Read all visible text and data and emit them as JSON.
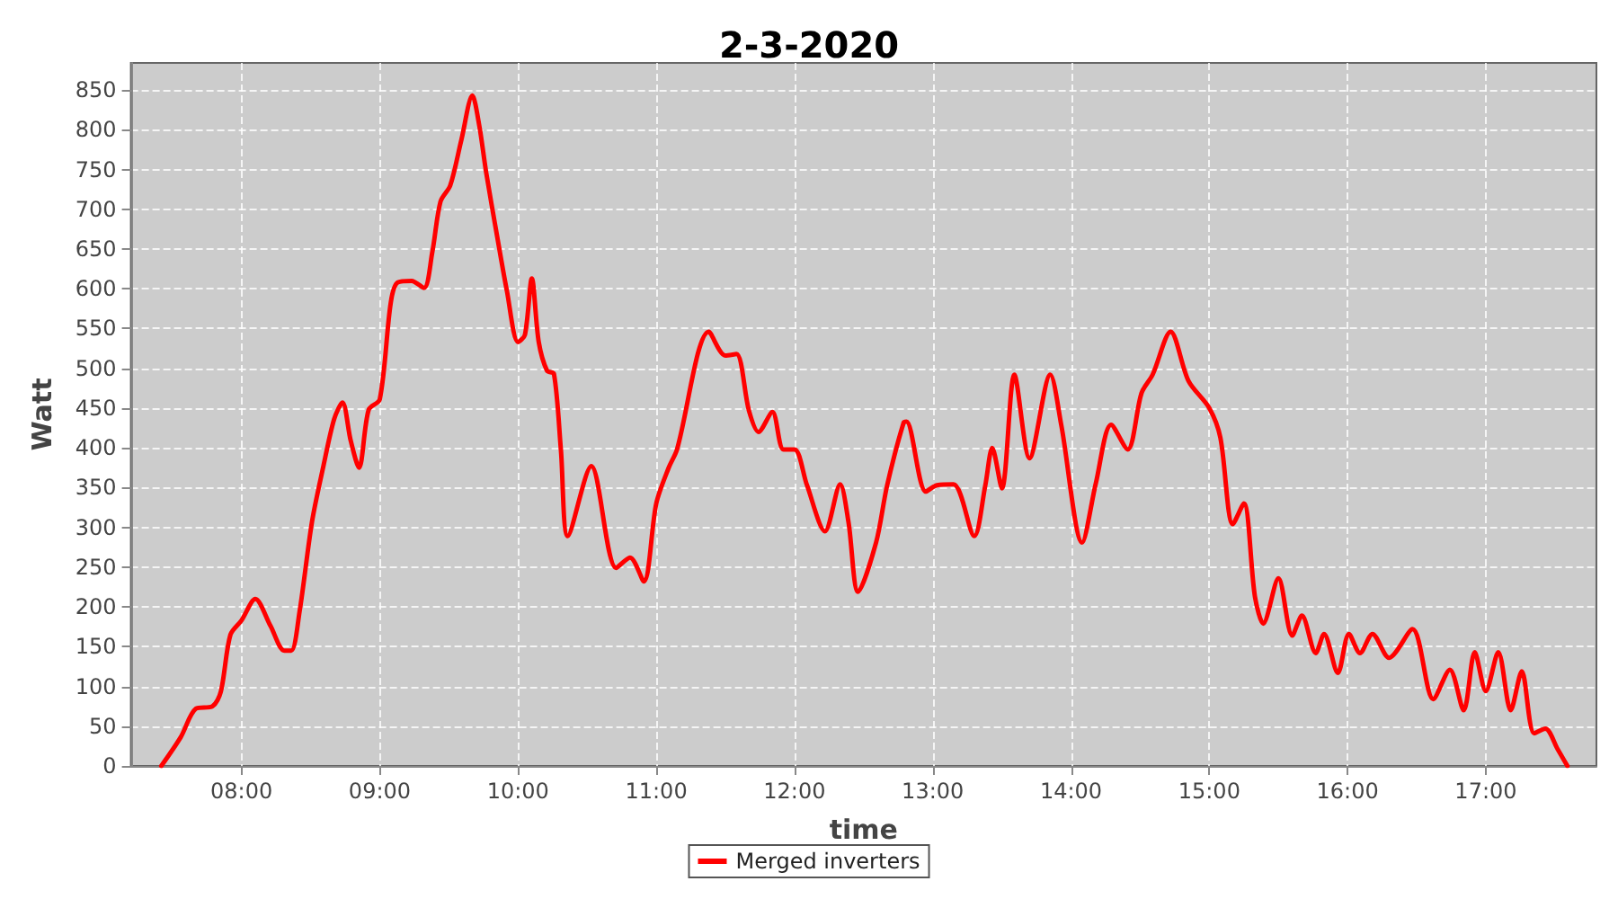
{
  "chart_data": {
    "type": "line",
    "title": "2-3-2020",
    "xlabel": "time",
    "ylabel": "Watt",
    "xlim": [
      7.2,
      17.8
    ],
    "ylim": [
      0,
      884
    ],
    "xticks": [
      {
        "value": 8,
        "label": "08:00"
      },
      {
        "value": 9,
        "label": "09:00"
      },
      {
        "value": 10,
        "label": "10:00"
      },
      {
        "value": 11,
        "label": "11:00"
      },
      {
        "value": 12,
        "label": "12:00"
      },
      {
        "value": 13,
        "label": "13:00"
      },
      {
        "value": 14,
        "label": "14:00"
      },
      {
        "value": 15,
        "label": "15:00"
      },
      {
        "value": 16,
        "label": "16:00"
      },
      {
        "value": 17,
        "label": "17:00"
      }
    ],
    "yticks": [
      0,
      50,
      100,
      150,
      200,
      250,
      300,
      350,
      400,
      450,
      500,
      550,
      600,
      650,
      700,
      750,
      800,
      850
    ],
    "grid": true,
    "legend": "bottom",
    "line_style": "solid",
    "series": [
      {
        "name": "Merged inverters",
        "color": "#ff0000",
        "x": [
          7.42,
          7.56,
          7.67,
          7.79,
          7.85,
          7.92,
          8.0,
          8.1,
          8.21,
          8.31,
          8.36,
          8.42,
          8.51,
          8.59,
          8.67,
          8.73,
          8.79,
          8.85,
          8.92,
          9.0,
          9.08,
          9.13,
          9.23,
          9.32,
          9.38,
          9.44,
          9.51,
          9.59,
          9.67,
          9.72,
          9.77,
          9.85,
          9.92,
          10.0,
          10.05,
          10.1,
          10.15,
          10.21,
          10.26,
          10.31,
          10.36,
          10.53,
          10.71,
          10.81,
          10.91,
          11.0,
          11.09,
          11.15,
          11.38,
          11.5,
          11.58,
          11.67,
          11.74,
          11.84,
          11.92,
          12.0,
          12.09,
          12.22,
          12.33,
          12.39,
          12.46,
          12.59,
          12.67,
          12.79,
          12.81,
          12.95,
          13.03,
          13.15,
          13.3,
          13.38,
          13.43,
          13.5,
          13.59,
          13.7,
          13.85,
          13.93,
          14.08,
          14.18,
          14.29,
          14.41,
          14.51,
          14.59,
          14.72,
          14.85,
          15.0,
          15.08,
          15.17,
          15.25,
          15.33,
          15.39,
          15.5,
          15.6,
          15.67,
          15.77,
          15.83,
          15.93,
          16.01,
          16.09,
          16.18,
          16.3,
          16.47,
          16.62,
          16.74,
          16.84,
          16.92,
          17.0,
          17.09,
          17.18,
          17.26,
          17.35,
          17.43,
          17.52,
          17.59
        ],
        "values": [
          0,
          36,
          72,
          75,
          93,
          165,
          183,
          210,
          176,
          145,
          145,
          194,
          307,
          375,
          436,
          457,
          409,
          375,
          448,
          461,
          583,
          608,
          610,
          601,
          646,
          710,
          730,
          787,
          843,
          805,
          746,
          665,
          597,
          533,
          542,
          613,
          533,
          497,
          493,
          398,
          289,
          377,
          249,
          262,
          232,
          330,
          375,
          398,
          546,
          516,
          518,
          447,
          420,
          445,
          398,
          398,
          353,
          295,
          354,
          307,
          219,
          281,
          353,
          432,
          433,
          345,
          353,
          354,
          289,
          353,
          400,
          349,
          492,
          387,
          492,
          428,
          281,
          356,
          429,
          398,
          469,
          492,
          546,
          484,
          450,
          413,
          304,
          330,
          213,
          179,
          236,
          164,
          189,
          142,
          166,
          117,
          166,
          142,
          166,
          136,
          172,
          84,
          121,
          70,
          143,
          94,
          143,
          70,
          119,
          41,
          47,
          21,
          0
        ]
      }
    ]
  }
}
